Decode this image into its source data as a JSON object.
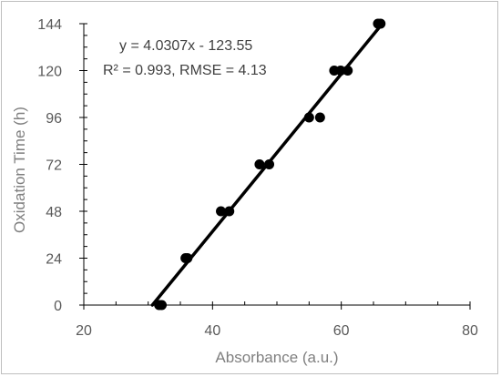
{
  "chart_data": {
    "type": "scatter",
    "title": "",
    "xlabel": "Absorbance (a.u.)",
    "ylabel": "Oxidation Time (h)",
    "xlim": [
      20,
      80
    ],
    "ylim": [
      0,
      144
    ],
    "xticks": [
      "20",
      "40",
      "60",
      "80"
    ],
    "yticks": [
      "0",
      "24",
      "48",
      "72",
      "96",
      "120",
      "144"
    ],
    "grid": false,
    "legend": "none",
    "series": [
      {
        "points": [
          {
            "x": 31.7,
            "y": 0
          },
          {
            "x": 32.1,
            "y": 0
          },
          {
            "x": 35.8,
            "y": 24
          },
          {
            "x": 36.1,
            "y": 24
          },
          {
            "x": 41.3,
            "y": 48
          },
          {
            "x": 42.6,
            "y": 48
          },
          {
            "x": 47.3,
            "y": 72
          },
          {
            "x": 48.8,
            "y": 72
          },
          {
            "x": 55.0,
            "y": 96
          },
          {
            "x": 56.7,
            "y": 96
          },
          {
            "x": 58.9,
            "y": 120
          },
          {
            "x": 59.9,
            "y": 120
          },
          {
            "x": 61.0,
            "y": 120
          },
          {
            "x": 65.7,
            "y": 144
          },
          {
            "x": 66.1,
            "y": 144
          }
        ],
        "color": "#000000"
      }
    ],
    "trendline": {
      "slope": 4.0307,
      "intercept": -123.55,
      "equation": "y = 4.0307x - 123.55",
      "stats": "R² = 0.993, RMSE = 4.13",
      "color": "#000000"
    }
  }
}
